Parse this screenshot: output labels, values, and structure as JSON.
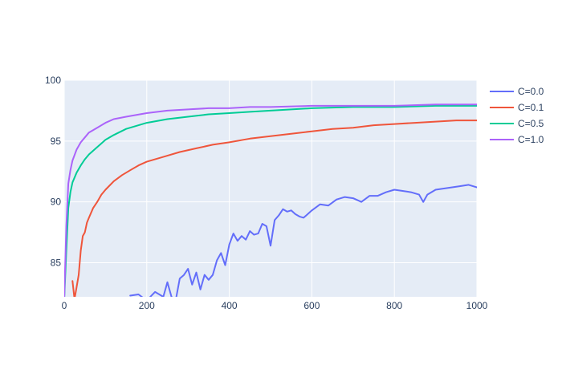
{
  "chart_data": {
    "type": "line",
    "title": "",
    "xlabel": "",
    "ylabel": "",
    "xlim": [
      0,
      1000
    ],
    "ylim": [
      82.2,
      100
    ],
    "xticks": [
      0,
      200,
      400,
      600,
      800,
      1000
    ],
    "xtick_labels": [
      "0",
      "200",
      "400",
      "600",
      "800",
      "1000"
    ],
    "yticks": [
      85,
      90,
      95,
      100
    ],
    "ytick_labels": [
      "85",
      "90",
      "95",
      "100"
    ],
    "grid": true,
    "legend_position": "right",
    "colors": {
      "plot_bg": "#E5ECF6",
      "grid": "#ffffff",
      "text": "#2a3f5f"
    },
    "series": [
      {
        "name": "C=0.0",
        "color": "#636EFA",
        "x": [
          160,
          180,
          200,
          220,
          240,
          250,
          260,
          270,
          280,
          290,
          300,
          310,
          320,
          330,
          340,
          350,
          360,
          370,
          380,
          390,
          400,
          410,
          420,
          430,
          440,
          450,
          460,
          470,
          480,
          490,
          500,
          510,
          520,
          530,
          540,
          550,
          560,
          570,
          580,
          590,
          600,
          620,
          640,
          660,
          680,
          700,
          720,
          740,
          760,
          780,
          800,
          820,
          840,
          860,
          870,
          880,
          900,
          920,
          940,
          960,
          980,
          1000
        ],
        "y": [
          82.3,
          82.4,
          81.9,
          82.6,
          82.2,
          83.4,
          82.2,
          81.9,
          83.7,
          84.0,
          84.5,
          83.2,
          84.2,
          82.8,
          84.0,
          83.6,
          84.0,
          85.2,
          85.8,
          84.8,
          86.5,
          87.4,
          86.8,
          87.2,
          86.9,
          87.6,
          87.3,
          87.4,
          88.2,
          88.0,
          86.4,
          88.5,
          88.9,
          89.4,
          89.2,
          89.3,
          89.0,
          88.8,
          88.7,
          89.0,
          89.3,
          89.8,
          89.7,
          90.2,
          90.4,
          90.3,
          90.0,
          90.5,
          90.5,
          90.8,
          91.0,
          90.9,
          90.8,
          90.6,
          90.0,
          90.6,
          91.0,
          91.1,
          91.2,
          91.3,
          91.4,
          91.2
        ]
      },
      {
        "name": "C=0.1",
        "color": "#EF553B",
        "x": [
          20,
          25,
          30,
          35,
          40,
          45,
          50,
          55,
          60,
          70,
          80,
          90,
          100,
          120,
          140,
          160,
          180,
          200,
          240,
          280,
          320,
          360,
          400,
          450,
          500,
          550,
          600,
          650,
          700,
          750,
          800,
          850,
          900,
          950,
          1000
        ],
        "y": [
          83.5,
          82.0,
          83.0,
          84.0,
          86.0,
          87.2,
          87.5,
          88.3,
          88.7,
          89.5,
          90.0,
          90.6,
          91.0,
          91.7,
          92.2,
          92.6,
          93.0,
          93.3,
          93.7,
          94.1,
          94.4,
          94.7,
          94.9,
          95.2,
          95.4,
          95.6,
          95.8,
          96.0,
          96.1,
          96.3,
          96.4,
          96.5,
          96.6,
          96.7,
          96.7
        ]
      },
      {
        "name": "C=0.5",
        "color": "#00CC96",
        "x": [
          0,
          5,
          10,
          15,
          20,
          30,
          40,
          50,
          60,
          80,
          100,
          120,
          150,
          200,
          250,
          300,
          350,
          400,
          450,
          500,
          600,
          700,
          800,
          900,
          1000
        ],
        "y": [
          82.0,
          86.0,
          89.5,
          90.8,
          91.6,
          92.4,
          93.0,
          93.5,
          93.9,
          94.5,
          95.1,
          95.5,
          96.0,
          96.5,
          96.8,
          97.0,
          97.2,
          97.3,
          97.4,
          97.5,
          97.7,
          97.8,
          97.8,
          97.9,
          97.9
        ]
      },
      {
        "name": "C=1.0",
        "color": "#AB63FA",
        "x": [
          0,
          5,
          10,
          15,
          20,
          30,
          40,
          50,
          60,
          80,
          100,
          120,
          150,
          200,
          250,
          300,
          350,
          400,
          450,
          500,
          600,
          700,
          800,
          900,
          1000
        ],
        "y": [
          82.0,
          88.0,
          91.5,
          92.6,
          93.4,
          94.3,
          94.9,
          95.3,
          95.7,
          96.1,
          96.5,
          96.8,
          97.0,
          97.3,
          97.5,
          97.6,
          97.7,
          97.7,
          97.8,
          97.8,
          97.9,
          97.9,
          97.9,
          98.0,
          98.0
        ]
      }
    ]
  }
}
